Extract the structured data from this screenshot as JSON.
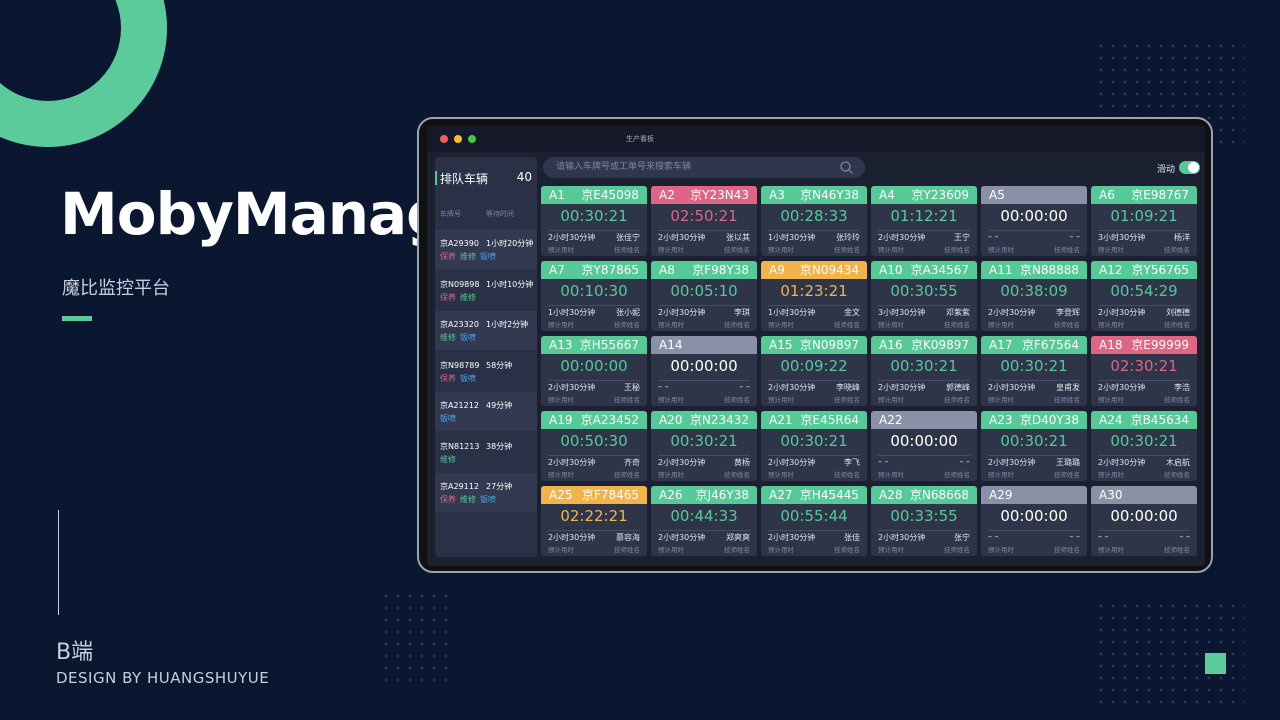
{
  "brand": {
    "title": "MobyManage",
    "subtitle": "魔比监控平台",
    "kind": "B端",
    "credit": "DESIGN BY HUANGSHUYUE"
  },
  "window": {
    "title": "生产看板",
    "search_placeholder": "请输入车牌号或工单号来搜索车辆",
    "toggle": "滑动"
  },
  "queue": {
    "title": "排队车辆",
    "count": "40",
    "columns": [
      "车牌号",
      "等待时间"
    ],
    "rows": [
      {
        "plate": "京A29390",
        "wait": "1小时20分钟",
        "tags": [
          "保养",
          "维修",
          "钣喷"
        ]
      },
      {
        "plate": "京N09898",
        "wait": "1小时10分钟",
        "tags": [
          "保养",
          "维修"
        ]
      },
      {
        "plate": "京A23320",
        "wait": "1小时2分钟",
        "tags": [
          "维修",
          "钣喷"
        ]
      },
      {
        "plate": "京N98789",
        "wait": "58分钟",
        "tags": [
          "保养",
          "钣喷"
        ]
      },
      {
        "plate": "京A21212",
        "wait": "49分钟",
        "tags": [
          "钣喷"
        ]
      },
      {
        "plate": "京N81213",
        "wait": "38分钟",
        "tags": [
          "维修"
        ]
      },
      {
        "plate": "京A29112",
        "wait": "27分钟",
        "tags": [
          "保养",
          "维修",
          "钣喷"
        ]
      }
    ]
  },
  "card_labels": [
    "预计用时",
    "技师姓名"
  ],
  "cards": [
    {
      "bay": "A1",
      "plate": "京E45098",
      "time": "00:30:21",
      "estimate": "2小时30分钟",
      "tech": "张佳宁",
      "color": "#55c996"
    },
    {
      "bay": "A2",
      "plate": "京Y23N43",
      "time": "02:50:21",
      "estimate": "2小时30分钟",
      "tech": "张以其",
      "color": "#e06483"
    },
    {
      "bay": "A3",
      "plate": "京N46Y38",
      "time": "00:28:33",
      "estimate": "1小时30分钟",
      "tech": "张玲玲",
      "color": "#55c996"
    },
    {
      "bay": "A4",
      "plate": "京Y23609",
      "time": "01:12:21",
      "estimate": "2小时30分钟",
      "tech": "王宁",
      "color": "#55c996"
    },
    {
      "bay": "A5",
      "time": "00:00:00",
      "estimate": "– –",
      "tech": "– –",
      "color": "#8a90a6"
    },
    {
      "bay": "A6",
      "plate": "京E98767",
      "time": "01:09:21",
      "estimate": "3小时30分钟",
      "tech": "杨洋",
      "color": "#55c996"
    },
    {
      "bay": "A7",
      "plate": "京Y87865",
      "time": "00:10:30",
      "estimate": "1小时30分钟",
      "tech": "张小妮",
      "color": "#55c996"
    },
    {
      "bay": "A8",
      "plate": "京F98Y38",
      "time": "00:05:10",
      "estimate": "2小时30分钟",
      "tech": "李琪",
      "color": "#55c996"
    },
    {
      "bay": "A9",
      "plate": "京N09434",
      "time": "01:23:21",
      "estimate": "1小时30分钟",
      "tech": "金文",
      "color": "#f2b34a"
    },
    {
      "bay": "A10",
      "plate": "京A34567",
      "time": "00:30:55",
      "estimate": "3小时30分钟",
      "tech": "邓紫紫",
      "color": "#55c996"
    },
    {
      "bay": "A11",
      "plate": "京N88888",
      "time": "00:38:09",
      "estimate": "2小时30分钟",
      "tech": "李登辉",
      "color": "#55c996"
    },
    {
      "bay": "A12",
      "plate": "京Y56765",
      "time": "00:54:29",
      "estimate": "2小时30分钟",
      "tech": "刘德德",
      "color": "#55c996"
    },
    {
      "bay": "A13",
      "plate": "京H55667",
      "time": "00:00:00",
      "estimate": "2小时30分钟",
      "tech": "王秘",
      "color": "#55c996"
    },
    {
      "bay": "A14",
      "time": "00:00:00",
      "estimate": "– –",
      "tech": "– –",
      "color": "#8a90a6"
    },
    {
      "bay": "A15",
      "plate": "京N09897",
      "time": "00:09:22",
      "estimate": "2小时30分钟",
      "tech": "李晓峰",
      "color": "#55c996"
    },
    {
      "bay": "A16",
      "plate": "京K09897",
      "time": "00:30:21",
      "estimate": "2小时30分钟",
      "tech": "郭德峰",
      "color": "#55c996"
    },
    {
      "bay": "A17",
      "plate": "京F67564",
      "time": "00:30:21",
      "estimate": "2小时30分钟",
      "tech": "皇甫发",
      "color": "#55c996"
    },
    {
      "bay": "A18",
      "plate": "京E99999",
      "time": "02:30:21",
      "estimate": "2小时30分钟",
      "tech": "李浩",
      "color": "#e06483"
    },
    {
      "bay": "A19",
      "plate": "京A23452",
      "time": "00:50:30",
      "estimate": "2小时30分钟",
      "tech": "齐奇",
      "color": "#55c996"
    },
    {
      "bay": "A20",
      "plate": "京N23432",
      "time": "00:30:21",
      "estimate": "2小时30分钟",
      "tech": "黄杨",
      "color": "#55c996"
    },
    {
      "bay": "A21",
      "plate": "京E45R64",
      "time": "00:30:21",
      "estimate": "2小时30分钟",
      "tech": "李飞",
      "color": "#55c996"
    },
    {
      "bay": "A22",
      "time": "00:00:00",
      "estimate": "– –",
      "tech": "– –",
      "color": "#8a90a6"
    },
    {
      "bay": "A23",
      "plate": "京D40Y38",
      "time": "00:30:21",
      "estimate": "2小时30分钟",
      "tech": "王璐璐",
      "color": "#55c996"
    },
    {
      "bay": "A24",
      "plate": "京B45634",
      "time": "00:30:21",
      "estimate": "2小时30分钟",
      "tech": "木启航",
      "color": "#55c996"
    },
    {
      "bay": "A25",
      "plate": "京F78465",
      "time": "02:22:21",
      "estimate": "2小时30分钟",
      "tech": "慕容海",
      "color": "#f2b34a"
    },
    {
      "bay": "A26",
      "plate": "京J46Y38",
      "time": "00:44:33",
      "estimate": "2小时30分钟",
      "tech": "郑爽爽",
      "color": "#55c996"
    },
    {
      "bay": "A27",
      "plate": "京H45445",
      "time": "00:55:44",
      "estimate": "2小时30分钟",
      "tech": "张佳",
      "color": "#55c996"
    },
    {
      "bay": "A28",
      "plate": "京N68668",
      "time": "00:33:55",
      "estimate": "2小时30分钟",
      "tech": "张宁",
      "color": "#55c996"
    },
    {
      "bay": "A29",
      "time": "00:00:00",
      "estimate": "– –",
      "tech": "– –",
      "color": "#8a90a6"
    },
    {
      "bay": "A30",
      "time": "00:00:00",
      "estimate": "– –",
      "tech": "– –",
      "color": "#8a90a6"
    }
  ],
  "tag_colors": {
    "保养": "#e06483",
    "维修": "#55c996",
    "钣喷": "#4aa8e8"
  }
}
